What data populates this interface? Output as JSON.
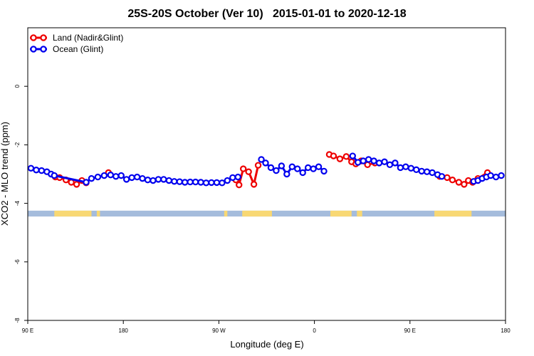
{
  "chart_data": {
    "type": "line",
    "title": "25S-20S October (Ver 10)   2015-01-01 to 2020-12-18",
    "xlabel": "Longitude (deg E)",
    "ylabel": "XCO2 - MLO trend (ppm)",
    "xlim": [
      90,
      540
    ],
    "ylim": [
      -8,
      2
    ],
    "x_ticks": [
      {
        "value": 90,
        "label": "90 E"
      },
      {
        "value": 180,
        "label": "180"
      },
      {
        "value": 270,
        "label": "90 W"
      },
      {
        "value": 360,
        "label": "0"
      },
      {
        "value": 450,
        "label": "90 E"
      },
      {
        "value": 540,
        "label": "180"
      }
    ],
    "y_ticks": [
      {
        "value": 0,
        "label": "0"
      },
      {
        "value": -2,
        "label": "-2"
      },
      {
        "value": -4,
        "label": "-4"
      },
      {
        "value": -6,
        "label": "-6"
      },
      {
        "value": -8,
        "label": "-8"
      }
    ],
    "grid": false,
    "legend_position": "top-left",
    "land_strip": {
      "y_range": [
        -4.45,
        -4.25
      ],
      "ocean_color": "#a5bcdc",
      "land_color": "#f8d874",
      "land_segments": [
        [
          115,
          150
        ],
        [
          155,
          158
        ],
        [
          292,
          320
        ],
        [
          275,
          278
        ],
        [
          375,
          395
        ],
        [
          400,
          405
        ],
        [
          473,
          508
        ]
      ]
    },
    "series": [
      {
        "name": "Land (Nadir&Glint)",
        "color": "#ee0000",
        "segments": [
          [
            [
              116,
              -3.1
            ],
            [
              120,
              -3.12
            ],
            [
              126,
              -3.2
            ],
            [
              131,
              -3.28
            ],
            [
              136,
              -3.35
            ],
            [
              141,
              -3.22
            ],
            [
              145,
              -3.3
            ]
          ],
          [
            [
              166,
              -2.95
            ]
          ],
          [
            [
              286,
              -3.2
            ],
            [
              289,
              -3.37
            ],
            [
              293,
              -2.82
            ],
            [
              298,
              -2.92
            ],
            [
              303,
              -3.35
            ],
            [
              307,
              -2.7
            ]
          ],
          [
            [
              374,
              -2.33
            ],
            [
              378,
              -2.38
            ],
            [
              384,
              -2.48
            ],
            [
              390,
              -2.4
            ],
            [
              395,
              -2.58
            ],
            [
              399,
              -2.65
            ],
            [
              404,
              -2.55
            ],
            [
              410,
              -2.68
            ],
            [
              417,
              -2.62
            ]
          ],
          [
            [
              478,
              -3.08
            ],
            [
              485,
              -3.12
            ],
            [
              490,
              -3.2
            ],
            [
              496,
              -3.28
            ],
            [
              501,
              -3.35
            ],
            [
              505,
              -3.22
            ],
            [
              509,
              -3.28
            ],
            [
              514,
              -3.15
            ],
            [
              523,
              -2.95
            ]
          ]
        ]
      },
      {
        "name": "Ocean (Glint)",
        "color": "#0000ee",
        "segments": [
          [
            [
              93,
              -2.8
            ],
            [
              98,
              -2.86
            ],
            [
              103,
              -2.88
            ],
            [
              108,
              -2.92
            ],
            [
              112,
              -3.0
            ],
            [
              115,
              -3.05
            ],
            [
              145,
              -3.28
            ],
            [
              150,
              -3.15
            ],
            [
              156,
              -3.1
            ],
            [
              162,
              -3.05
            ],
            [
              168,
              -3.03
            ],
            [
              173,
              -3.08
            ],
            [
              178,
              -3.05
            ],
            [
              183,
              -3.18
            ],
            [
              188,
              -3.12
            ],
            [
              193,
              -3.1
            ],
            [
              198,
              -3.15
            ],
            [
              203,
              -3.2
            ],
            [
              208,
              -3.22
            ],
            [
              213,
              -3.18
            ],
            [
              218,
              -3.18
            ],
            [
              223,
              -3.22
            ],
            [
              228,
              -3.25
            ],
            [
              233,
              -3.26
            ],
            [
              238,
              -3.28
            ],
            [
              243,
              -3.27
            ],
            [
              248,
              -3.27
            ],
            [
              253,
              -3.28
            ],
            [
              258,
              -3.3
            ],
            [
              263,
              -3.29
            ],
            [
              268,
              -3.29
            ],
            [
              273,
              -3.3
            ],
            [
              278,
              -3.22
            ],
            [
              283,
              -3.12
            ],
            [
              288,
              -3.1
            ]
          ],
          [
            [
              310,
              -2.5
            ],
            [
              314,
              -2.62
            ],
            [
              319,
              -2.78
            ],
            [
              324,
              -2.88
            ],
            [
              329,
              -2.72
            ],
            [
              334,
              -3.0
            ],
            [
              339,
              -2.75
            ],
            [
              344,
              -2.82
            ],
            [
              349,
              -2.95
            ],
            [
              354,
              -2.78
            ],
            [
              359,
              -2.82
            ],
            [
              364,
              -2.75
            ],
            [
              369,
              -2.9
            ]
          ],
          [
            [
              396,
              -2.38
            ],
            [
              401,
              -2.6
            ],
            [
              406,
              -2.55
            ],
            [
              411,
              -2.5
            ],
            [
              416,
              -2.55
            ],
            [
              421,
              -2.62
            ],
            [
              426,
              -2.58
            ],
            [
              431,
              -2.68
            ],
            [
              436,
              -2.62
            ],
            [
              441,
              -2.78
            ],
            [
              446,
              -2.75
            ],
            [
              451,
              -2.8
            ],
            [
              456,
              -2.85
            ],
            [
              461,
              -2.9
            ],
            [
              466,
              -2.92
            ],
            [
              471,
              -2.95
            ],
            [
              476,
              -3.02
            ],
            [
              480,
              -3.08
            ]
          ],
          [
            [
              510,
              -3.25
            ],
            [
              514,
              -3.22
            ],
            [
              518,
              -3.15
            ],
            [
              522,
              -3.1
            ],
            [
              526,
              -3.05
            ],
            [
              531,
              -3.1
            ],
            [
              536,
              -3.05
            ]
          ]
        ]
      }
    ]
  }
}
